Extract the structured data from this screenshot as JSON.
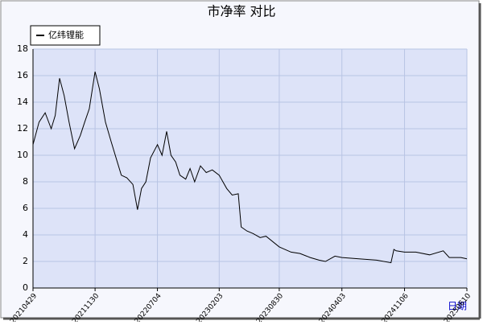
{
  "chart_data": {
    "type": "line",
    "title": "市净率  对比",
    "xlabel": "日期",
    "x": [
      "20210429",
      "20210520",
      "20210610",
      "20210701",
      "20210715",
      "20210730",
      "20210815",
      "20210901",
      "20210920",
      "20211010",
      "20211025",
      "20211110",
      "20211130",
      "20211215",
      "20220105",
      "20220125",
      "20220215",
      "20220301",
      "20220320",
      "20220410",
      "20220426",
      "20220510",
      "20220525",
      "20220610",
      "20220704",
      "20220720",
      "20220805",
      "20220820",
      "20220905",
      "20220920",
      "20221010",
      "20221025",
      "20221110",
      "20221130",
      "20221220",
      "20230110",
      "20230203",
      "20230301",
      "20230320",
      "20230410",
      "20230420",
      "20230510",
      "20230601",
      "20230625",
      "20230715",
      "20230830",
      "20231010",
      "20231110",
      "20231215",
      "20240115",
      "20240206",
      "20240310",
      "20240403",
      "20240601",
      "20240801",
      "20240920",
      "20240930",
      "20241008",
      "20241106",
      "20241215",
      "20250201",
      "20250320",
      "20250410",
      "20250520",
      "20250610"
    ],
    "series": [
      {
        "name": "亿纬锂能",
        "color": "#000000",
        "values": [
          10.8,
          12.5,
          13.2,
          12.0,
          13.0,
          15.8,
          14.5,
          12.5,
          10.5,
          11.5,
          12.5,
          13.5,
          16.3,
          15.0,
          12.5,
          11.0,
          9.5,
          8.5,
          8.3,
          7.8,
          5.9,
          7.5,
          8.0,
          9.8,
          10.8,
          10.0,
          11.8,
          10.0,
          9.5,
          8.5,
          8.2,
          9.0,
          8.0,
          9.2,
          8.7,
          8.9,
          8.5,
          7.5,
          7.0,
          7.1,
          4.6,
          4.3,
          4.1,
          3.8,
          3.9,
          3.1,
          2.7,
          2.6,
          2.3,
          2.1,
          2.0,
          2.4,
          2.3,
          2.2,
          2.1,
          1.9,
          2.9,
          2.8,
          2.7,
          2.7,
          2.5,
          2.8,
          2.3,
          2.3,
          2.2
        ]
      }
    ],
    "xlim": [
      "20210429",
      "20250610"
    ],
    "xticks": [
      "20210429",
      "20211130",
      "20220704",
      "20230203",
      "20230830",
      "20240403",
      "20241106",
      "20250610"
    ],
    "ylim": [
      0,
      18
    ],
    "yticks": [
      0,
      2,
      4,
      6,
      8,
      10,
      12,
      14,
      16,
      18
    ],
    "grid": true,
    "legend": "upper left"
  }
}
